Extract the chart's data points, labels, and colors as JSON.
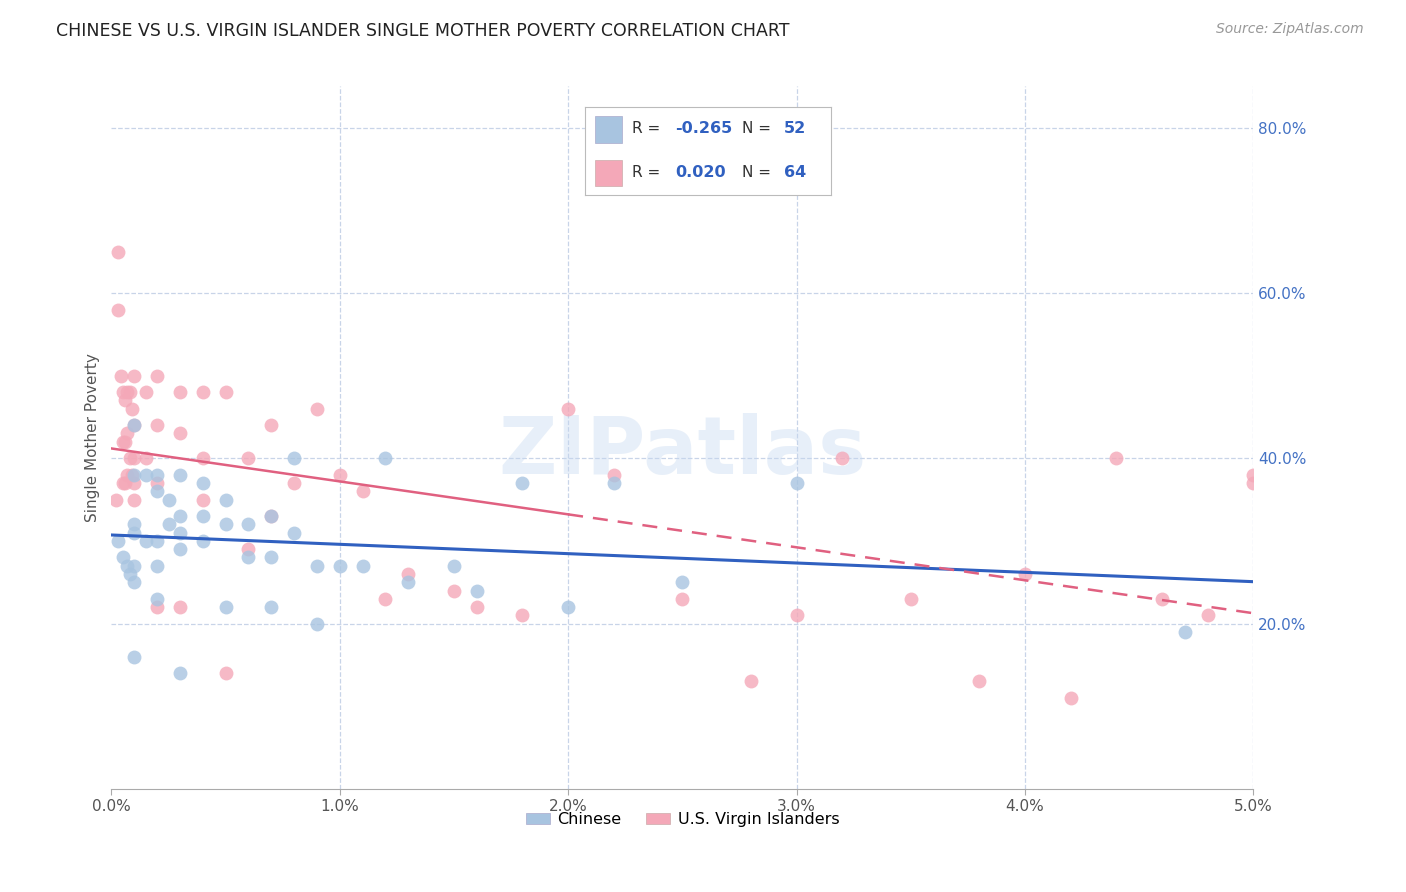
{
  "title": "CHINESE VS U.S. VIRGIN ISLANDER SINGLE MOTHER POVERTY CORRELATION CHART",
  "source": "Source: ZipAtlas.com",
  "ylabel": "Single Mother Poverty",
  "xlim": [
    0.0,
    0.05
  ],
  "ylim": [
    0.0,
    0.85
  ],
  "xtick_labels": [
    "0.0%",
    "1.0%",
    "2.0%",
    "3.0%",
    "4.0%",
    "5.0%"
  ],
  "xtick_vals": [
    0.0,
    0.01,
    0.02,
    0.03,
    0.04,
    0.05
  ],
  "ytick_labels_right": [
    "20.0%",
    "40.0%",
    "60.0%",
    "80.0%"
  ],
  "ytick_vals_right": [
    0.2,
    0.4,
    0.6,
    0.8
  ],
  "chinese_R": "-0.265",
  "chinese_N": "52",
  "virgin_R": "0.020",
  "virgin_N": "64",
  "chinese_color": "#a8c4e0",
  "virgin_color": "#f4a8b8",
  "chinese_line_color": "#3060c0",
  "virgin_line_color": "#e06080",
  "background_color": "#ffffff",
  "grid_color": "#c8d4e8",
  "title_color": "#222222",
  "source_color": "#999999",
  "right_axis_color": "#4472c4",
  "watermark": "ZIPatlas",
  "legend_labels": [
    "Chinese",
    "U.S. Virgin Islanders"
  ],
  "chinese_scatter_x": [
    0.0003,
    0.0005,
    0.0007,
    0.0008,
    0.001,
    0.001,
    0.001,
    0.001,
    0.001,
    0.001,
    0.001,
    0.0015,
    0.0015,
    0.002,
    0.002,
    0.002,
    0.002,
    0.002,
    0.0025,
    0.0025,
    0.003,
    0.003,
    0.003,
    0.003,
    0.003,
    0.004,
    0.004,
    0.004,
    0.005,
    0.005,
    0.005,
    0.006,
    0.006,
    0.007,
    0.007,
    0.007,
    0.008,
    0.008,
    0.009,
    0.009,
    0.01,
    0.011,
    0.012,
    0.013,
    0.015,
    0.016,
    0.018,
    0.02,
    0.022,
    0.025,
    0.03,
    0.047
  ],
  "chinese_scatter_y": [
    0.3,
    0.28,
    0.27,
    0.26,
    0.44,
    0.38,
    0.32,
    0.31,
    0.27,
    0.25,
    0.16,
    0.38,
    0.3,
    0.38,
    0.36,
    0.3,
    0.27,
    0.23,
    0.35,
    0.32,
    0.38,
    0.33,
    0.31,
    0.29,
    0.14,
    0.37,
    0.33,
    0.3,
    0.35,
    0.32,
    0.22,
    0.32,
    0.28,
    0.33,
    0.28,
    0.22,
    0.4,
    0.31,
    0.27,
    0.2,
    0.27,
    0.27,
    0.4,
    0.25,
    0.27,
    0.24,
    0.37,
    0.22,
    0.37,
    0.25,
    0.37,
    0.19
  ],
  "virgin_scatter_x": [
    0.0002,
    0.0003,
    0.0003,
    0.0004,
    0.0005,
    0.0005,
    0.0005,
    0.0006,
    0.0006,
    0.0006,
    0.0007,
    0.0007,
    0.0007,
    0.0008,
    0.0008,
    0.0009,
    0.0009,
    0.001,
    0.001,
    0.001,
    0.001,
    0.001,
    0.0015,
    0.0015,
    0.002,
    0.002,
    0.002,
    0.002,
    0.003,
    0.003,
    0.003,
    0.004,
    0.004,
    0.004,
    0.005,
    0.005,
    0.006,
    0.006,
    0.007,
    0.007,
    0.008,
    0.009,
    0.01,
    0.011,
    0.012,
    0.013,
    0.015,
    0.016,
    0.018,
    0.02,
    0.022,
    0.025,
    0.028,
    0.03,
    0.032,
    0.035,
    0.038,
    0.04,
    0.042,
    0.044,
    0.046,
    0.048,
    0.05,
    0.05
  ],
  "virgin_scatter_y": [
    0.35,
    0.65,
    0.58,
    0.5,
    0.48,
    0.42,
    0.37,
    0.47,
    0.42,
    0.37,
    0.48,
    0.43,
    0.38,
    0.48,
    0.4,
    0.46,
    0.38,
    0.5,
    0.44,
    0.4,
    0.37,
    0.35,
    0.48,
    0.4,
    0.5,
    0.44,
    0.37,
    0.22,
    0.48,
    0.43,
    0.22,
    0.48,
    0.4,
    0.35,
    0.48,
    0.14,
    0.4,
    0.29,
    0.44,
    0.33,
    0.37,
    0.46,
    0.38,
    0.36,
    0.23,
    0.26,
    0.24,
    0.22,
    0.21,
    0.46,
    0.38,
    0.23,
    0.13,
    0.21,
    0.4,
    0.23,
    0.13,
    0.26,
    0.11,
    0.4,
    0.23,
    0.21,
    0.38,
    0.37
  ]
}
